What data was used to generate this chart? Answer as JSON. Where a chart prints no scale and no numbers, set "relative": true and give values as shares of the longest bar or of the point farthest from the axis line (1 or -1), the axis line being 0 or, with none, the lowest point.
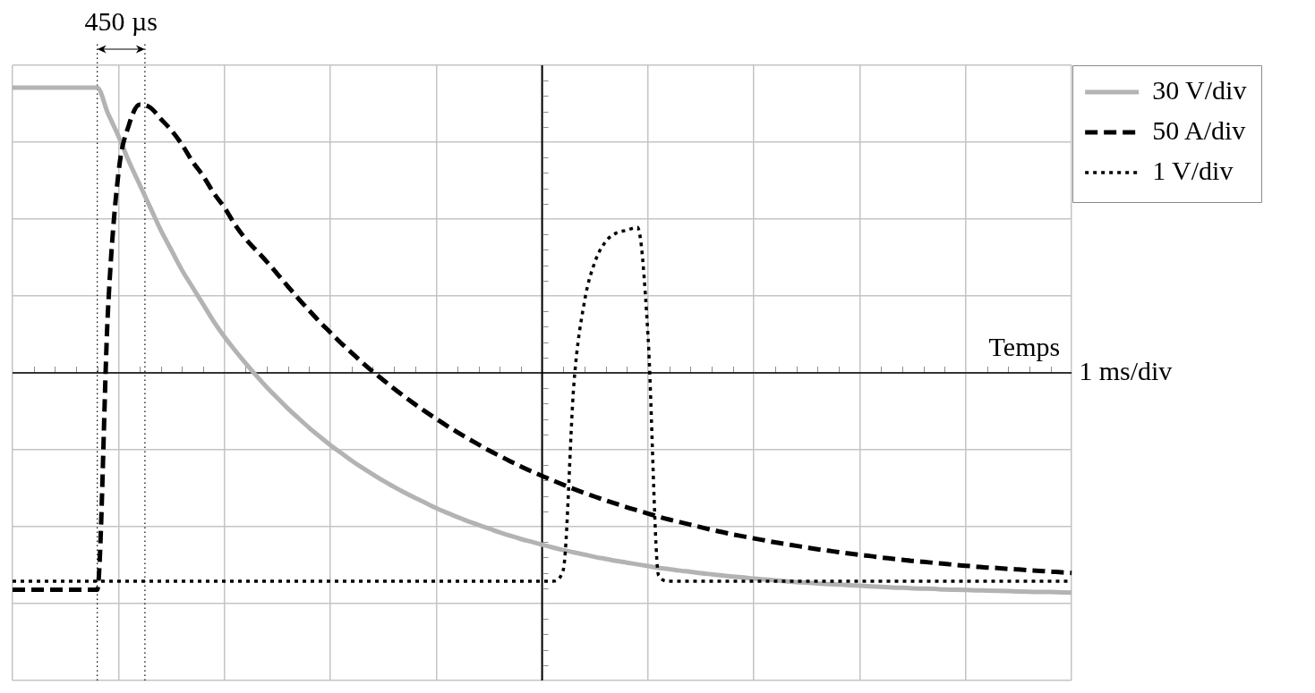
{
  "chart_data": {
    "type": "line",
    "relative": true,
    "xlabel": "Temps",
    "annotations": [
      "450 µs",
      "1 ms/div"
    ],
    "tick_labels": false,
    "grid": true,
    "legend": "top right",
    "categories": [
      null,
      null,
      null,
      null,
      null,
      null,
      null,
      null,
      null,
      null,
      null,
      null,
      null,
      null,
      null,
      null,
      null,
      null,
      null,
      null,
      null,
      null,
      null,
      null,
      null,
      null,
      null,
      null,
      null,
      null,
      null,
      null,
      null,
      null,
      null,
      null,
      null,
      null,
      null,
      null,
      null,
      null,
      null,
      null,
      null,
      null,
      null,
      null,
      null,
      null,
      null,
      null,
      null,
      null,
      null,
      null,
      null,
      null,
      null,
      null,
      null,
      null,
      null,
      null,
      null,
      null,
      null,
      null,
      null,
      null,
      null,
      null,
      null,
      null,
      null,
      null,
      null,
      null,
      null,
      null,
      null,
      null,
      null,
      null,
      null,
      null,
      null,
      null,
      null,
      null,
      null,
      null,
      null,
      null,
      null,
      null,
      null,
      null,
      null,
      null,
      null
    ],
    "series": [
      {
        "name": "30 V/div",
        "color": "#b3b3b3",
        "line_style": "solid",
        "values": [
          1,
          1,
          1,
          1,
          1,
          1,
          1,
          1,
          1,
          0.91,
          0.83,
          0.74,
          0.66,
          0.58,
          0.5,
          0.43,
          0.36,
          0.3,
          0.24,
          0.18,
          0.127,
          0.079,
          0.034,
          -0.009,
          -0.05,
          -0.088,
          -0.125,
          -0.159,
          -0.192,
          -0.223,
          -0.253,
          -0.28,
          -0.307,
          -0.332,
          -0.355,
          -0.378,
          -0.399,
          -0.419,
          -0.438,
          -0.456,
          -0.474,
          -0.49,
          -0.505,
          -0.52,
          -0.533,
          -0.546,
          -0.559,
          -0.571,
          -0.582,
          -0.592,
          -0.602,
          -0.612,
          -0.621,
          -0.629,
          -0.637,
          -0.645,
          -0.652,
          -0.659,
          -0.665,
          -0.671,
          -0.677,
          -0.683,
          -0.688,
          -0.693,
          -0.697,
          -0.702,
          -0.706,
          -0.71,
          -0.714,
          -0.717,
          -0.721,
          -0.724,
          -0.727,
          -0.73,
          -0.733,
          -0.735,
          -0.738,
          -0.74,
          -0.742,
          -0.744,
          -0.746,
          -0.748,
          -0.75,
          -0.752,
          -0.753,
          -0.755,
          -0.756,
          -0.757,
          -0.759,
          -0.76,
          -0.761,
          -0.762,
          -0.763,
          -0.764,
          -0.765,
          -0.766,
          -0.767,
          -0.768,
          -0.768,
          -0.769,
          -0.77
        ]
      },
      {
        "name": "50 A/div",
        "color": "#000000",
        "line_style": "dashed",
        "values": [
          -0.76,
          -0.76,
          -0.76,
          -0.76,
          -0.76,
          -0.76,
          -0.76,
          -0.76,
          -0.76,
          0.21,
          0.7,
          0.87,
          0.94,
          0.93,
          0.89,
          0.85,
          0.8,
          0.74,
          0.69,
          0.63,
          0.58,
          0.52,
          0.47,
          0.43,
          0.39,
          0.347,
          0.303,
          0.26,
          0.219,
          0.179,
          0.142,
          0.105,
          0.071,
          0.037,
          0.005,
          -0.025,
          -0.055,
          -0.083,
          -0.11,
          -0.136,
          -0.161,
          -0.185,
          -0.208,
          -0.23,
          -0.251,
          -0.272,
          -0.291,
          -0.31,
          -0.328,
          -0.345,
          -0.361,
          -0.377,
          -0.392,
          -0.407,
          -0.421,
          -0.434,
          -0.447,
          -0.459,
          -0.471,
          -0.482,
          -0.493,
          -0.504,
          -0.514,
          -0.523,
          -0.532,
          -0.541,
          -0.55,
          -0.558,
          -0.566,
          -0.573,
          -0.58,
          -0.587,
          -0.594,
          -0.6,
          -0.606,
          -0.612,
          -0.618,
          -0.623,
          -0.628,
          -0.633,
          -0.638,
          -0.642,
          -0.647,
          -0.651,
          -0.655,
          -0.659,
          -0.662,
          -0.666,
          -0.669,
          -0.673,
          -0.676,
          -0.679,
          -0.682,
          -0.684,
          -0.687,
          -0.689,
          -0.692,
          -0.694,
          -0.696,
          -0.699,
          -0.701
        ]
      },
      {
        "name": "1 V/div",
        "color": "#000000",
        "line_style": "dotted",
        "values": [
          -0.73,
          -0.73,
          -0.73,
          -0.73,
          -0.73,
          -0.73,
          -0.73,
          -0.73,
          -0.73,
          -0.73,
          -0.73,
          -0.73,
          -0.73,
          -0.73,
          -0.73,
          -0.73,
          -0.73,
          -0.73,
          -0.73,
          -0.73,
          -0.73,
          -0.73,
          -0.73,
          -0.73,
          -0.73,
          -0.73,
          -0.73,
          -0.73,
          -0.73,
          -0.73,
          -0.73,
          -0.73,
          -0.73,
          -0.73,
          -0.73,
          -0.73,
          -0.73,
          -0.73,
          -0.73,
          -0.73,
          -0.73,
          -0.73,
          -0.73,
          -0.73,
          -0.73,
          -0.73,
          -0.73,
          -0.73,
          -0.73,
          -0.73,
          -0.73,
          -0.73,
          -0.69,
          -0.04,
          0.25,
          0.39,
          0.46,
          0.49,
          0.5,
          0.51,
          0.13,
          -0.71,
          -0.73,
          -0.73,
          -0.73,
          -0.73,
          -0.73,
          -0.73,
          -0.73,
          -0.73,
          -0.73,
          -0.73,
          -0.73,
          -0.73,
          -0.73,
          -0.73,
          -0.73,
          -0.73,
          -0.73,
          -0.73,
          -0.73,
          -0.73,
          -0.73,
          -0.73,
          -0.73,
          -0.73,
          -0.73,
          -0.73,
          -0.73,
          -0.73,
          -0.73,
          -0.73,
          -0.73,
          -0.73,
          -0.73,
          -0.73,
          -0.73,
          -0.73,
          -0.73,
          -0.73,
          -0.73
        ]
      }
    ]
  }
}
